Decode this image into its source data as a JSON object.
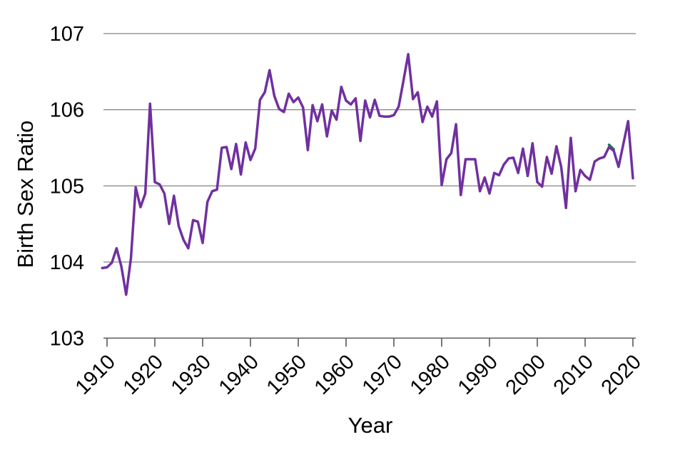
{
  "chart_data": {
    "type": "line",
    "title": "",
    "xlabel": "Year",
    "ylabel": "Birth Sex Ratio",
    "xlim": [
      1909,
      2020
    ],
    "ylim": [
      103,
      107
    ],
    "x_ticks": [
      1910,
      1920,
      1930,
      1940,
      1950,
      1960,
      1970,
      1980,
      1990,
      2000,
      2010,
      2020
    ],
    "y_ticks": [
      103,
      104,
      105,
      106,
      107
    ],
    "grid": "horizontal",
    "legend": "none",
    "gridline_color": "#767676",
    "axis_color": "#595959",
    "series": [
      {
        "name": "overlay-series-green",
        "color": "#1E7B4D",
        "year_start": 2015,
        "year_end": 2016,
        "values": [
          105.54,
          105.48
        ]
      },
      {
        "name": "birth-sex-ratio",
        "color": "#7030A0",
        "year_start": 1909,
        "year_end": 2020,
        "values": [
          103.92,
          103.93,
          103.99,
          104.18,
          103.94,
          103.57,
          104.05,
          104.98,
          104.72,
          104.9,
          106.08,
          105.05,
          105.02,
          104.9,
          104.5,
          104.87,
          104.47,
          104.29,
          104.18,
          104.55,
          104.53,
          104.25,
          104.79,
          104.93,
          104.95,
          105.5,
          105.51,
          105.22,
          105.55,
          105.15,
          105.57,
          105.34,
          105.49,
          106.13,
          106.23,
          106.52,
          106.18,
          106.01,
          105.97,
          106.21,
          106.1,
          106.16,
          106.03,
          105.47,
          106.06,
          105.85,
          106.07,
          105.65,
          105.99,
          105.87,
          106.3,
          106.12,
          106.07,
          106.15,
          105.59,
          106.12,
          105.9,
          106.13,
          105.92,
          105.91,
          105.91,
          105.93,
          106.04,
          106.38,
          106.73,
          106.14,
          106.23,
          105.84,
          106.04,
          105.91,
          106.11,
          105.01,
          105.35,
          105.43,
          105.81,
          104.88,
          105.35,
          105.35,
          105.35,
          104.93,
          105.11,
          104.9,
          105.17,
          105.14,
          105.28,
          105.36,
          105.37,
          105.17,
          105.49,
          105.13,
          105.56,
          105.05,
          104.99,
          105.38,
          105.16,
          105.52,
          105.25,
          104.71,
          105.63,
          104.93,
          105.21,
          105.13,
          105.08,
          105.32,
          105.36,
          105.38,
          105.51,
          105.46,
          105.25,
          105.55,
          105.85,
          105.1
        ]
      }
    ]
  }
}
